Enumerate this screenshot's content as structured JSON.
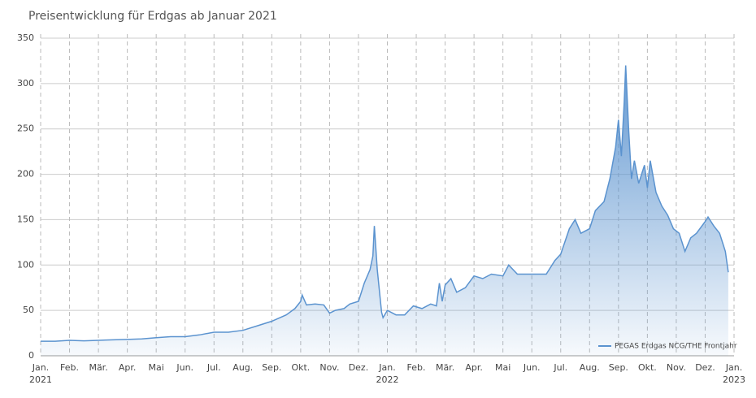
{
  "chart_data": {
    "type": "area",
    "title": "Preisentwicklung für Erdgas ab Januar 2021",
    "series": [
      {
        "name": "PEGAS Erdgas NCG/THE Frontjahr",
        "color": "#5b93cf",
        "x": [
          0,
          0.5,
          1,
          1.5,
          2,
          2.5,
          3,
          3.5,
          4,
          4.5,
          5,
          5.5,
          6,
          6.5,
          7,
          7.5,
          8,
          8.5,
          8.8,
          9,
          9.05,
          9.2,
          9.5,
          9.8,
          10,
          10.2,
          10.5,
          10.7,
          11,
          11.2,
          11.4,
          11.5,
          11.55,
          11.65,
          11.8,
          11.85,
          12,
          12.3,
          12.6,
          12.9,
          13.2,
          13.5,
          13.7,
          13.8,
          13.9,
          14,
          14.2,
          14.4,
          14.7,
          15,
          15.3,
          15.6,
          16,
          16.2,
          16.5,
          17,
          17.5,
          17.8,
          18,
          18.3,
          18.5,
          18.7,
          19,
          19.2,
          19.5,
          19.7,
          19.9,
          20,
          20.1,
          20.2,
          20.25,
          20.35,
          20.45,
          20.55,
          20.7,
          20.9,
          21,
          21.1,
          21.3,
          21.5,
          21.7,
          21.9,
          22.1,
          22.3,
          22.5,
          22.7,
          23,
          23.1,
          23.3,
          23.5,
          23.7,
          23.8
        ],
        "values": [
          16,
          16,
          17,
          16.5,
          17,
          17.5,
          18,
          18.5,
          20,
          21,
          21,
          23,
          26,
          26,
          28,
          33,
          38,
          45,
          52,
          60,
          67,
          56,
          57,
          56,
          47,
          50,
          52,
          57,
          60,
          80,
          95,
          110,
          143,
          95,
          48,
          42,
          50,
          45,
          45,
          55,
          52,
          57,
          55,
          80,
          60,
          78,
          85,
          70,
          75,
          88,
          85,
          90,
          88,
          100,
          90,
          90,
          90,
          105,
          112,
          140,
          150,
          135,
          140,
          160,
          170,
          195,
          230,
          260,
          220,
          280,
          320,
          250,
          195,
          215,
          190,
          210,
          185,
          215,
          180,
          165,
          155,
          140,
          135,
          115,
          130,
          135,
          148,
          153,
          143,
          135,
          115,
          92
        ]
      }
    ],
    "xlim": [
      0,
      24
    ],
    "xticks": [
      {
        "value": 0,
        "label": "Jan."
      },
      {
        "value": 1,
        "label": "Feb."
      },
      {
        "value": 2,
        "label": "Mär."
      },
      {
        "value": 3,
        "label": "Apr."
      },
      {
        "value": 4,
        "label": "Mai"
      },
      {
        "value": 5,
        "label": "Jun."
      },
      {
        "value": 6,
        "label": "Jul."
      },
      {
        "value": 7,
        "label": "Aug."
      },
      {
        "value": 8,
        "label": "Sep."
      },
      {
        "value": 9,
        "label": "Okt."
      },
      {
        "value": 10,
        "label": "Nov."
      },
      {
        "value": 11,
        "label": "Dez."
      },
      {
        "value": 12,
        "label": "Jan."
      },
      {
        "value": 13,
        "label": "Feb."
      },
      {
        "value": 14,
        "label": "Mär."
      },
      {
        "value": 15,
        "label": "Apr."
      },
      {
        "value": 16,
        "label": "Mai"
      },
      {
        "value": 17,
        "label": "Jun."
      },
      {
        "value": 18,
        "label": "Jul."
      },
      {
        "value": 19,
        "label": "Aug."
      },
      {
        "value": 20,
        "label": "Sep."
      },
      {
        "value": 21,
        "label": "Okt."
      },
      {
        "value": 22,
        "label": "Nov."
      },
      {
        "value": 23,
        "label": "Dez."
      },
      {
        "value": 24,
        "label": "Jan."
      }
    ],
    "xtick_years": [
      {
        "value": 0,
        "label": "2021"
      },
      {
        "value": 12,
        "label": "2022"
      },
      {
        "value": 24,
        "label": "2023"
      }
    ],
    "ylim": [
      0,
      350
    ],
    "yticks": [
      0,
      50,
      100,
      150,
      200,
      250,
      300,
      350
    ],
    "grid": true,
    "legend": "lower right"
  }
}
